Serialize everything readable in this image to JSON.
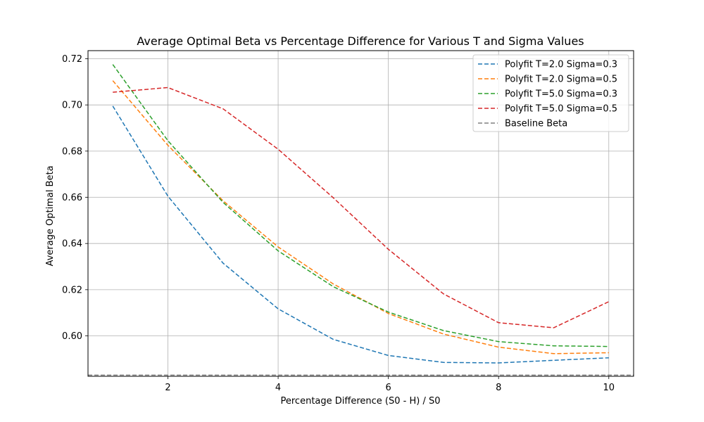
{
  "chart_data": {
    "type": "line",
    "title": "Average Optimal Beta vs Percentage Difference for Various T and Sigma Values",
    "xlabel": "Percentage Difference (S0 - H) / S0",
    "ylabel": "Average Optimal Beta",
    "xlim": [
      0.55,
      10.45
    ],
    "ylim": [
      0.5825,
      0.7235
    ],
    "x_ticks": [
      2,
      4,
      6,
      8,
      10
    ],
    "y_ticks": [
      0.6,
      0.62,
      0.64,
      0.66,
      0.68,
      0.7,
      0.72
    ],
    "x_tick_labels": [
      "2",
      "4",
      "6",
      "8",
      "10"
    ],
    "y_tick_labels": [
      "0.60",
      "0.62",
      "0.64",
      "0.66",
      "0.68",
      "0.70",
      "0.72"
    ],
    "grid": true,
    "legend_position": "top-right",
    "x": [
      1,
      2,
      3,
      4,
      5,
      6,
      7,
      8,
      9,
      10
    ],
    "series": [
      {
        "name": "Polyfit T=2.0 Sigma=0.3",
        "color": "#1f77b4",
        "style": "dashed",
        "values": [
          0.6995,
          0.6605,
          0.6315,
          0.6117,
          0.5985,
          0.5915,
          0.5885,
          0.5883,
          0.5894,
          0.5905
        ]
      },
      {
        "name": "Polyfit T=2.0 Sigma=0.5",
        "color": "#ff7f0e",
        "style": "dashed",
        "values": [
          0.7105,
          0.6825,
          0.6585,
          0.6385,
          0.6225,
          0.6097,
          0.6008,
          0.5951,
          0.5923,
          0.5927
        ]
      },
      {
        "name": "Polyfit T=5.0 Sigma=0.3",
        "color": "#2ca02c",
        "style": "dashed",
        "values": [
          0.7175,
          0.6845,
          0.6578,
          0.6368,
          0.6213,
          0.6103,
          0.6023,
          0.5975,
          0.5957,
          0.5954
        ]
      },
      {
        "name": "Polyfit T=5.0 Sigma=0.5",
        "color": "#d62728",
        "style": "dashed",
        "values": [
          0.7055,
          0.7075,
          0.6983,
          0.6808,
          0.6598,
          0.6375,
          0.6182,
          0.6057,
          0.6035,
          0.6148
        ]
      },
      {
        "name": "Baseline Beta",
        "color": "#808080",
        "style": "dashed",
        "kind": "hline",
        "value": 0.583
      }
    ]
  }
}
